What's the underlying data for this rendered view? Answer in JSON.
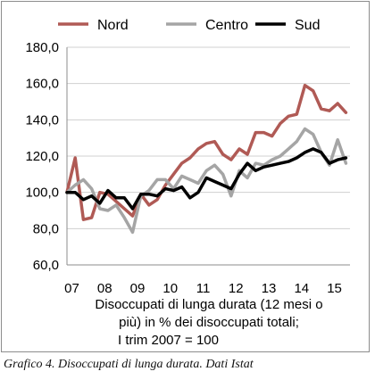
{
  "chart_data": {
    "type": "line",
    "x_tick_labels": [
      "07",
      "08",
      "09",
      "10",
      "11",
      "12",
      "13",
      "14",
      "15"
    ],
    "ylim": [
      60,
      180
    ],
    "y_ticks": [
      60,
      80,
      100,
      120,
      140,
      160,
      180
    ],
    "y_tick_labels": [
      "60,0",
      "80,0",
      "100,0",
      "120,0",
      "140,0",
      "160,0",
      "180,0"
    ],
    "grid": "horizontal",
    "legend_position": "top",
    "xlabel_lines": [
      "Disoccupati di lunga durata (12 mesi o",
      "più) in % dei disoccupati totali;",
      "I trim 2007 = 100"
    ],
    "x": [
      2007.0,
      2007.25,
      2007.5,
      2007.75,
      2008.0,
      2008.25,
      2008.5,
      2008.75,
      2009.0,
      2009.25,
      2009.5,
      2009.75,
      2010.0,
      2010.25,
      2010.5,
      2010.75,
      2011.0,
      2011.25,
      2011.5,
      2011.75,
      2012.0,
      2012.25,
      2012.5,
      2012.75,
      2013.0,
      2013.25,
      2013.5,
      2013.75,
      2014.0,
      2014.25,
      2014.5,
      2014.75,
      2015.0,
      2015.25,
      2015.5
    ],
    "series": [
      {
        "name": "Nord",
        "color": "#b05a55",
        "values": [
          100,
          119,
          85,
          86,
          100,
          99,
          95,
          91,
          87,
          99,
          93,
          96,
          104,
          110,
          116,
          119,
          124,
          127,
          128,
          121,
          118,
          124,
          121,
          133,
          133,
          131,
          138,
          142,
          143,
          159,
          156,
          146,
          145,
          149,
          144
        ]
      },
      {
        "name": "Centro",
        "color": "#a5a5a5",
        "values": [
          100,
          104,
          107,
          102,
          91,
          90,
          93,
          86,
          78,
          98,
          101,
          107,
          107,
          102,
          109,
          107,
          105,
          112,
          115,
          110,
          98,
          112,
          108,
          116,
          115,
          118,
          120,
          124,
          128,
          135,
          132,
          122,
          115,
          129,
          116
        ]
      },
      {
        "name": "Sud",
        "color": "#000000",
        "values": [
          100,
          100,
          96,
          98,
          94,
          101,
          97,
          97,
          91,
          99,
          99,
          98,
          102,
          101,
          103,
          97,
          100,
          108,
          106,
          104,
          102,
          110,
          116,
          112,
          114,
          115,
          116,
          117,
          119,
          122,
          124,
          122,
          116,
          118,
          119
        ]
      }
    ]
  },
  "caption": "Grafico 4. Disoccupati di lunga durata. Dati Istat"
}
